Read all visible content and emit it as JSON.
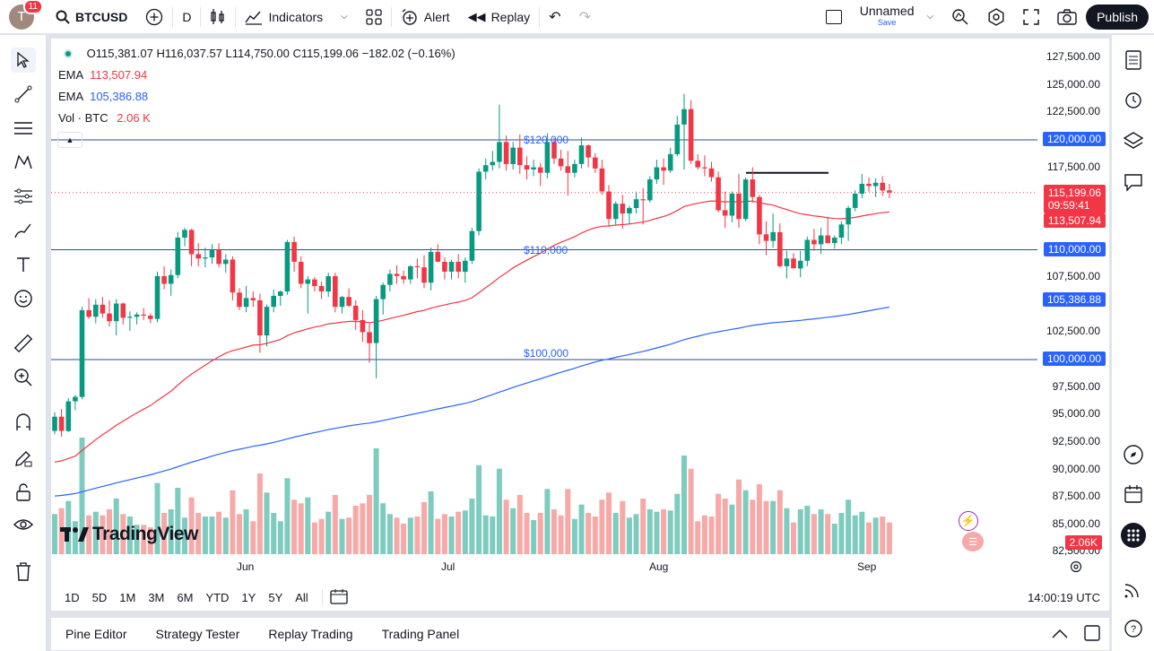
{
  "topbar": {
    "avatar_letter": "T",
    "notifications": "11",
    "symbol": "BTCUSD",
    "interval": "D",
    "indicators": "Indicators",
    "alert": "Alert",
    "replay": "Replay",
    "layout_name": "Unnamed",
    "layout_sub": "Save",
    "publish": "Publish"
  },
  "legend": {
    "ohlc": "O115,381.07 H116,037.57 L114,750.00 C115,199.06 −182.02 (−0.16%)",
    "ema1_label": "EMA",
    "ema1_value": "113,507.94",
    "ema2_label": "EMA",
    "ema2_value": "105,386.88",
    "vol_label": "Vol · BTC",
    "vol_value": "2.06 K"
  },
  "price_axis": [
    "127,500.00",
    "125,000.00",
    "122,500.00",
    "117,500.00",
    "107,500.00",
    "102,500.00",
    "97,500.00",
    "95,000.00",
    "92,500.00",
    "90,000.00",
    "87,500.00",
    "85,000.00",
    "82,500.00"
  ],
  "price_labels": {
    "level_120k": "120,000.00",
    "last_price": "115,199.06",
    "countdown": "09:59:41",
    "ema1": "113,507.94",
    "level_110k": "110,000.00",
    "ema2": "105,386.88",
    "level_100k": "100,000.00",
    "volume": "2.06K"
  },
  "level_texts": {
    "l120": "$120,000",
    "l110": "$110,000",
    "l100": "$100,000"
  },
  "time_axis": [
    "Jun",
    "Jul",
    "Aug",
    "Sep"
  ],
  "watermark": "TradingView",
  "range_buttons": [
    "1D",
    "5D",
    "1M",
    "3M",
    "6M",
    "YTD",
    "1Y",
    "5Y",
    "All"
  ],
  "clock": "14:00:19 UTC",
  "bottom_tabs": [
    "Pine Editor",
    "Strategy Tester",
    "Replay Trading",
    "Trading Panel"
  ],
  "colors": {
    "up": "#089981",
    "down": "#f23645",
    "ema1": "#f23645",
    "ema2": "#2962ff",
    "level": "#2a4e8f",
    "vol_up": "#7ecbbf",
    "vol_down": "#f7a9a7"
  },
  "chart_data": {
    "type": "candlestick",
    "ylim": [
      82500,
      128500
    ],
    "candles": [
      [
        93500,
        95200,
        93200,
        94800
      ],
      [
        94800,
        95500,
        93000,
        93500
      ],
      [
        93500,
        96500,
        93400,
        96200
      ],
      [
        96200,
        96800,
        95400,
        96600
      ],
      [
        96600,
        104800,
        96400,
        104500
      ],
      [
        104500,
        105600,
        103700,
        103900
      ],
      [
        103900,
        105500,
        103300,
        105000
      ],
      [
        105000,
        105700,
        103800,
        104200
      ],
      [
        104200,
        105400,
        103000,
        103500
      ],
      [
        103500,
        105500,
        102200,
        105100
      ],
      [
        105100,
        105200,
        103200,
        103800
      ],
      [
        103800,
        104400,
        102600,
        103900
      ],
      [
        103900,
        104300,
        103200,
        104100
      ],
      [
        104100,
        104700,
        103600,
        104000
      ],
      [
        104000,
        104200,
        103300,
        103700
      ],
      [
        103700,
        108000,
        103400,
        107600
      ],
      [
        107600,
        108500,
        106400,
        106900
      ],
      [
        106900,
        108200,
        105800,
        107700
      ],
      [
        107700,
        111600,
        107400,
        111100
      ],
      [
        111100,
        112000,
        110300,
        111800
      ],
      [
        111800,
        111900,
        108500,
        109600
      ],
      [
        109600,
        110600,
        108500,
        109200
      ],
      [
        109200,
        110200,
        108400,
        109300
      ],
      [
        109300,
        110500,
        108700,
        110000
      ],
      [
        110000,
        110600,
        108400,
        108700
      ],
      [
        108700,
        109600,
        107900,
        109100
      ],
      [
        109100,
        109400,
        105400,
        106100
      ],
      [
        106100,
        106500,
        104500,
        104800
      ],
      [
        104800,
        106700,
        104300,
        105600
      ],
      [
        105600,
        106200,
        104800,
        105400
      ],
      [
        105400,
        106000,
        100600,
        102200
      ],
      [
        102200,
        105000,
        101200,
        104800
      ],
      [
        104800,
        106400,
        104300,
        105800
      ],
      [
        105800,
        106300,
        104900,
        106200
      ],
      [
        106200,
        110900,
        105900,
        110700
      ],
      [
        110700,
        111200,
        108000,
        108900
      ],
      [
        108900,
        109400,
        106500,
        106900
      ],
      [
        106900,
        107600,
        104200,
        107300
      ],
      [
        107300,
        107500,
        106200,
        106700
      ],
      [
        106700,
        107100,
        105500,
        106200
      ],
      [
        106200,
        107900,
        105700,
        107600
      ],
      [
        107600,
        107900,
        104300,
        104800
      ],
      [
        104800,
        105800,
        104200,
        105700
      ],
      [
        105700,
        106500,
        104800,
        104900
      ],
      [
        104900,
        105400,
        102700,
        103600
      ],
      [
        103600,
        104500,
        101600,
        102500
      ],
      [
        102500,
        103300,
        99700,
        101500
      ],
      [
        101500,
        105800,
        98300,
        105500
      ],
      [
        105500,
        107000,
        104100,
        106800
      ],
      [
        106800,
        108200,
        106200,
        107800
      ],
      [
        107800,
        108600,
        106900,
        107600
      ],
      [
        107600,
        108100,
        106900,
        107300
      ],
      [
        107300,
        108600,
        106900,
        108500
      ],
      [
        108500,
        109200,
        107400,
        108400
      ],
      [
        108400,
        109500,
        106500,
        107000
      ],
      [
        107000,
        110200,
        106300,
        109800
      ],
      [
        109800,
        110500,
        108900,
        108900
      ],
      [
        108900,
        109300,
        107300,
        108000
      ],
      [
        108000,
        109100,
        107300,
        108900
      ],
      [
        108900,
        109600,
        107400,
        108000
      ],
      [
        108000,
        109300,
        107000,
        109000
      ],
      [
        109000,
        112000,
        108700,
        111700
      ],
      [
        111700,
        117400,
        111300,
        117100
      ],
      [
        117100,
        118300,
        116400,
        117700
      ],
      [
        117700,
        119000,
        117200,
        118000
      ],
      [
        118000,
        123200,
        117400,
        119800
      ],
      [
        119800,
        120400,
        117200,
        117800
      ],
      [
        117800,
        119800,
        117300,
        119300
      ],
      [
        119300,
        120500,
        116900,
        117700
      ],
      [
        117700,
        118500,
        116400,
        117300
      ],
      [
        117300,
        118200,
        116700,
        117500
      ],
      [
        117500,
        117900,
        115800,
        117000
      ],
      [
        117000,
        120600,
        116500,
        119800
      ],
      [
        119800,
        120200,
        117800,
        118300
      ],
      [
        118300,
        119100,
        117200,
        117600
      ],
      [
        117600,
        119000,
        114900,
        117000
      ],
      [
        117000,
        118200,
        116600,
        117800
      ],
      [
        117800,
        120200,
        117400,
        119500
      ],
      [
        119500,
        119600,
        117500,
        118400
      ],
      [
        118400,
        118800,
        117000,
        117400
      ],
      [
        117400,
        118200,
        115000,
        115300
      ],
      [
        115300,
        115900,
        112100,
        112800
      ],
      [
        112800,
        114400,
        112300,
        114200
      ],
      [
        114200,
        115000,
        111900,
        113300
      ],
      [
        113300,
        114000,
        112300,
        113800
      ],
      [
        113800,
        115300,
        113300,
        114600
      ],
      [
        114600,
        115600,
        112300,
        114500
      ],
      [
        114500,
        116700,
        114300,
        116400
      ],
      [
        116400,
        118200,
        116000,
        117500
      ],
      [
        117500,
        118300,
        115900,
        117200
      ],
      [
        117200,
        119300,
        117000,
        118700
      ],
      [
        118700,
        122200,
        118500,
        121400
      ],
      [
        121400,
        124200,
        117300,
        122800
      ],
      [
        122800,
        123600,
        117800,
        118100
      ],
      [
        118100,
        118700,
        117300,
        117500
      ],
      [
        117500,
        118600,
        116700,
        117400
      ],
      [
        117400,
        118000,
        116200,
        116600
      ],
      [
        116600,
        117100,
        113400,
        113600
      ],
      [
        113600,
        115300,
        112000,
        113100
      ],
      [
        113100,
        115300,
        112500,
        115100
      ],
      [
        115100,
        116900,
        112000,
        112800
      ],
      [
        112800,
        116600,
        112600,
        116400
      ],
      [
        116400,
        117500,
        114300,
        114800
      ],
      [
        114800,
        115000,
        110500,
        111400
      ],
      [
        111400,
        112600,
        109500,
        110800
      ],
      [
        110800,
        113300,
        110200,
        111600
      ],
      [
        111600,
        112400,
        108400,
        108500
      ],
      [
        108500,
        109900,
        107400,
        109200
      ],
      [
        109200,
        109700,
        108400,
        108300
      ],
      [
        108300,
        109900,
        107500,
        109000
      ],
      [
        109000,
        111200,
        108500,
        110900
      ],
      [
        110900,
        111900,
        109900,
        110500
      ],
      [
        110500,
        112000,
        109600,
        111300
      ],
      [
        111300,
        113000,
        111000,
        110600
      ],
      [
        110600,
        111300,
        110100,
        111100
      ],
      [
        111100,
        112600,
        110500,
        112300
      ],
      [
        112300,
        114000,
        110800,
        113800
      ],
      [
        113800,
        115400,
        113500,
        115100
      ],
      [
        115100,
        116900,
        114700,
        116000
      ],
      [
        116000,
        116600,
        115300,
        115800
      ],
      [
        115800,
        116500,
        114800,
        116100
      ],
      [
        116100,
        116700,
        114900,
        115400
      ],
      [
        115400,
        116000,
        114700,
        115200
      ]
    ]
  }
}
